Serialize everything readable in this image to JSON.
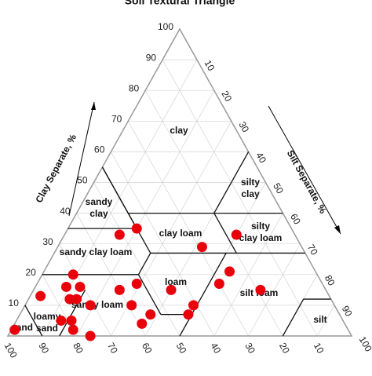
{
  "chart_data": {
    "type": "ternary",
    "title": "Soil Textural Triangle",
    "grid": true,
    "axes": {
      "clay": {
        "label": "Clay Separate, %",
        "lim": [
          0,
          100
        ],
        "ticks": [
          10,
          20,
          30,
          40,
          50,
          60,
          70,
          80,
          90,
          100
        ]
      },
      "silt": {
        "label": "Silt Separate, %",
        "lim": [
          0,
          100
        ],
        "ticks": [
          10,
          20,
          30,
          40,
          50,
          60,
          70,
          80,
          90,
          100
        ]
      },
      "sand": {
        "lim": [
          0,
          100
        ],
        "ticks": [
          100,
          90,
          80,
          70,
          60,
          50,
          40,
          30,
          20,
          10
        ]
      }
    },
    "regions": [
      {
        "lines": [
          "clay"
        ]
      },
      {
        "lines": [
          "sandy",
          "clay"
        ]
      },
      {
        "lines": [
          "silty",
          "clay"
        ]
      },
      {
        "lines": [
          "clay loam"
        ]
      },
      {
        "lines": [
          "silty",
          "clay loam"
        ]
      },
      {
        "lines": [
          "sandy clay loam"
        ]
      },
      {
        "lines": [
          "loam"
        ]
      },
      {
        "lines": [
          "silt loam"
        ]
      },
      {
        "lines": [
          "sandy loam"
        ]
      },
      {
        "lines": [
          "loamy",
          "sand"
        ]
      },
      {
        "lines": [
          "sand"
        ]
      },
      {
        "lines": [
          "silt"
        ]
      }
    ],
    "points": {
      "color": "#e8000b",
      "clay": [
        33,
        35,
        20,
        16,
        16,
        12,
        12,
        10,
        13,
        5,
        5,
        2,
        0,
        2,
        15,
        17,
        10,
        7,
        4,
        15,
        10,
        7,
        29,
        17,
        21,
        33,
        15
      ],
      "silt": [
        16,
        20,
        9,
        13,
        9,
        12,
        14,
        19,
        3,
        13,
        16,
        18,
        24,
        1,
        25,
        29,
        31,
        38,
        37,
        40,
        49,
        49,
        42,
        53,
        54,
        50,
        66
      ]
    }
  }
}
